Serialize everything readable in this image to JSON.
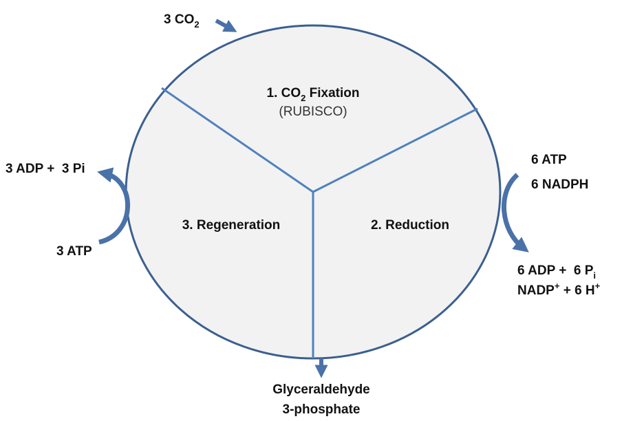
{
  "diagram": {
    "input": [
      {
        "text": "3 CO"
      },
      {
        "text": "2",
        "position": "sub"
      }
    ],
    "stages": [
      {
        "name": [
          {
            "text": "1. CO"
          },
          {
            "text": "2",
            "position": "sub"
          },
          {
            "text": " Fixation"
          }
        ],
        "enzyme": "(RUBISCO)"
      },
      {
        "name": [
          {
            "text": "2. Reduction"
          }
        ]
      },
      {
        "name": [
          {
            "text": "3. Regeneration"
          }
        ]
      }
    ],
    "reduction_inputs": [
      [
        {
          "text": "6 ATP"
        }
      ],
      [
        {
          "text": "6 NADPH"
        }
      ]
    ],
    "reduction_outputs": [
      [
        {
          "text": "6 ADP +  6 P"
        },
        {
          "text": "i",
          "position": "sub"
        }
      ],
      [
        {
          "text": "NADP"
        },
        {
          "text": "+",
          "position": "sup"
        },
        {
          "text": " + 6 H"
        },
        {
          "text": "+",
          "position": "sup"
        }
      ]
    ],
    "regeneration_inputs": [
      [
        {
          "text": "3 ATP"
        }
      ]
    ],
    "regeneration_outputs": [
      [
        {
          "text": "3 ADP +  3 Pi"
        }
      ]
    ],
    "product": [
      [
        {
          "text": "Glyceraldehyde"
        }
      ],
      [
        {
          "text": "3-phosphate"
        }
      ]
    ]
  }
}
